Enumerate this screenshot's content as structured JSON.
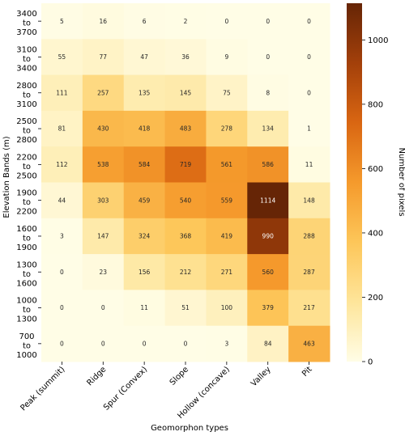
{
  "chart_data": {
    "type": "heatmap",
    "title": "",
    "xlabel": "Geomorphon types",
    "ylabel": "Elevation Bands (m)",
    "colorbar_label": "Number of pixels",
    "colorbar_range": [
      0,
      1114
    ],
    "colorbar_ticks": [
      0,
      200,
      400,
      600,
      800,
      1000
    ],
    "colormap": [
      "#fffde6",
      "#fee59a",
      "#fdc659",
      "#f59a2c",
      "#d96612",
      "#a3400a",
      "#662506"
    ],
    "x_categories": [
      "Peak (summit)",
      "Ridge",
      "Spur (Convex)",
      "Slope",
      "Hollow (concave)",
      "Valley",
      "Pit"
    ],
    "y_categories": [
      [
        "3400",
        "to",
        "3700"
      ],
      [
        "3100",
        "to",
        "3400"
      ],
      [
        "2800",
        "to",
        "3100"
      ],
      [
        "2500",
        "to",
        "2800"
      ],
      [
        "2200",
        "to",
        "2500"
      ],
      [
        "1900",
        "to",
        "2200"
      ],
      [
        "1600",
        "to",
        "1900"
      ],
      [
        "1300",
        "to",
        "1600"
      ],
      [
        "1000",
        "to",
        "1300"
      ],
      [
        "700",
        "to",
        "1000"
      ]
    ],
    "values": [
      [
        5,
        16,
        6,
        2,
        0,
        0,
        0
      ],
      [
        55,
        77,
        47,
        36,
        9,
        0,
        0
      ],
      [
        111,
        257,
        135,
        145,
        75,
        8,
        0
      ],
      [
        81,
        430,
        418,
        483,
        278,
        134,
        1
      ],
      [
        112,
        538,
        584,
        719,
        561,
        586,
        11
      ],
      [
        44,
        303,
        459,
        540,
        559,
        1114,
        148
      ],
      [
        3,
        147,
        324,
        368,
        419,
        990,
        288
      ],
      [
        0,
        23,
        156,
        212,
        271,
        560,
        287
      ],
      [
        0,
        0,
        11,
        51,
        100,
        379,
        217
      ],
      [
        0,
        0,
        0,
        0,
        3,
        84,
        463
      ]
    ]
  }
}
